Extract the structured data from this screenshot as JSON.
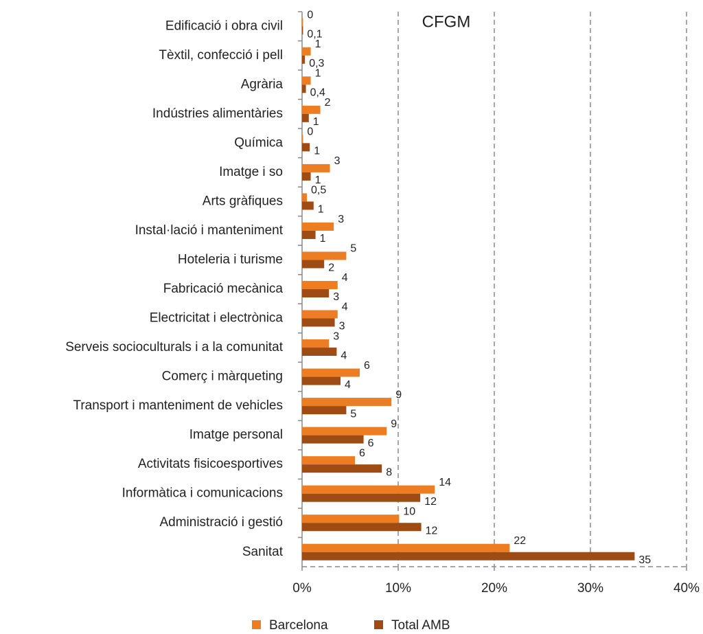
{
  "chart_data": {
    "type": "barh",
    "annotation": "CFGM",
    "categories": [
      "Edificació i obra civil",
      "Tèxtil, confecció i pell",
      "Agrària",
      "Indústries alimentàries",
      "Química",
      "Imatge i so",
      "Arts gràfiques",
      "Instal·lació i manteniment",
      "Hoteleria i turisme",
      "Fabricació mecànica",
      "Electricitat i electrònica",
      "Serveis socioculturals i a la comunitat",
      "Comerç i màrqueting",
      "Transport i manteniment de vehicles",
      "Imatge personal",
      "Activitats fisicoesportives",
      "Informàtica i comunicacions",
      "Administració i gestió",
      "Sanitat"
    ],
    "series": [
      {
        "name": "Barcelona",
        "color": "#ed7d22",
        "values": [
          0.1,
          0.9,
          0.9,
          1.9,
          0.1,
          2.9,
          0.5,
          3.3,
          4.6,
          3.7,
          3.7,
          2.8,
          6.0,
          9.3,
          8.8,
          5.5,
          13.8,
          10.1,
          21.6
        ],
        "value_labels": [
          "0",
          "1",
          "1",
          "2",
          "0",
          "3",
          "0,5",
          "3",
          "5",
          "4",
          "4",
          "3",
          "6",
          "9",
          "9",
          "6",
          "14",
          "10",
          "22"
        ]
      },
      {
        "name": "Total AMB",
        "color": "#9e4b14",
        "values": [
          0.1,
          0.3,
          0.4,
          0.7,
          0.8,
          0.9,
          1.2,
          1.4,
          2.3,
          2.8,
          3.4,
          3.6,
          4.0,
          4.6,
          6.4,
          8.3,
          12.3,
          12.4,
          34.6
        ],
        "value_labels": [
          "0,1",
          "0,3",
          "0,4",
          "1",
          "1",
          "1",
          "1",
          "1",
          "2",
          "3",
          "3",
          "4",
          "4",
          "5",
          "6",
          "8",
          "12",
          "12",
          "35"
        ]
      }
    ],
    "xlim": [
      0,
      40
    ],
    "xticks": [
      {
        "value": 0,
        "label": "0%"
      },
      {
        "value": 10,
        "label": "10%"
      },
      {
        "value": 20,
        "label": "20%"
      },
      {
        "value": 30,
        "label": "30%"
      },
      {
        "value": 40,
        "label": "40%"
      }
    ],
    "grid": true,
    "legend": "bottom"
  }
}
